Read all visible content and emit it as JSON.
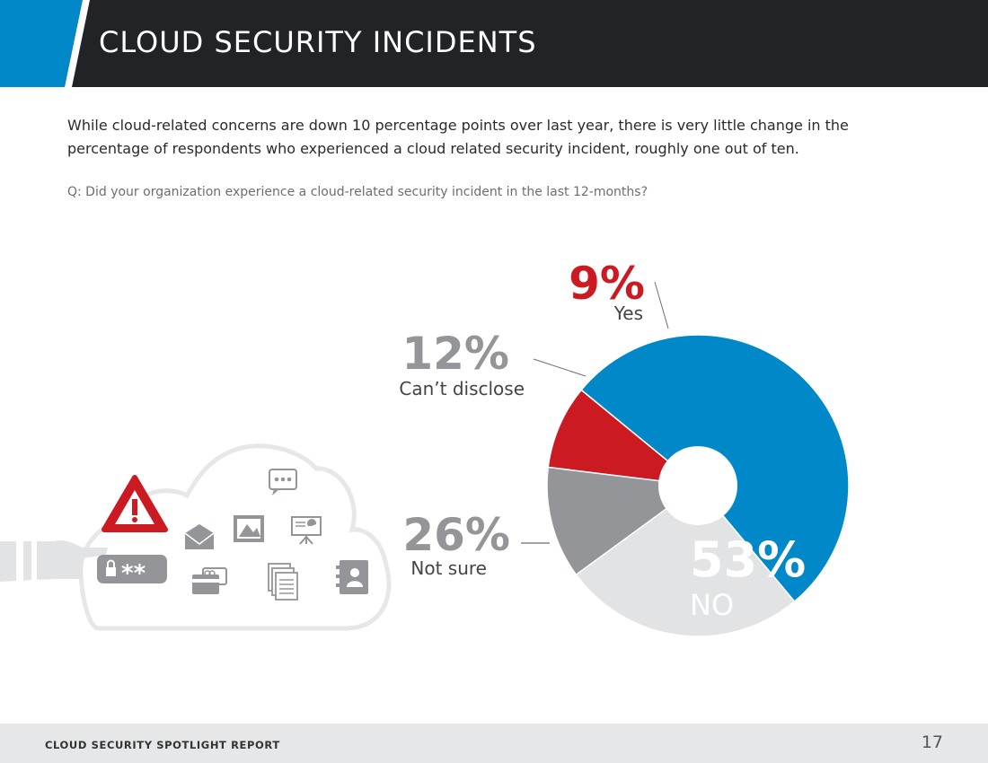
{
  "header": {
    "title": "CLOUD SECURITY INCIDENTS"
  },
  "intro": "While cloud-related concerns are down 10 percentage points over last year, there is very little change in the percentage of respondents who experienced a cloud related security incident, roughly one out of ten.",
  "question": "Q: Did your organization experience a cloud-related security incident in the last 12-months?",
  "chart_data": {
    "type": "pie",
    "categories": [
      "Yes",
      "NO",
      "Not sure",
      "Can’t disclose"
    ],
    "values": [
      9,
      53,
      26,
      12
    ],
    "value_labels": [
      "9%",
      "53%",
      "26%",
      "12%"
    ],
    "colors": [
      "#cc1a22",
      "#0088c8",
      "#e2e3e5",
      "#939598"
    ],
    "label_colors": [
      "#cc1a22",
      "#ffffff",
      "#939598",
      "#939598"
    ]
  },
  "illustration": {
    "icons": [
      "warning-icon",
      "password-icon",
      "envelope-icon",
      "image-icon",
      "chat-icon",
      "presentation-icon",
      "credit-card-icon",
      "documents-icon",
      "contacts-icon",
      "hand-icon"
    ],
    "password_mask": "**"
  },
  "footer": {
    "report_name": "CLOUD SECURITY SPOTLIGHT REPORT",
    "page_number": "17"
  },
  "theme": {
    "header_bg": "#212326",
    "accent": "#0088c8",
    "footer_bg": "#e6e7e8"
  }
}
